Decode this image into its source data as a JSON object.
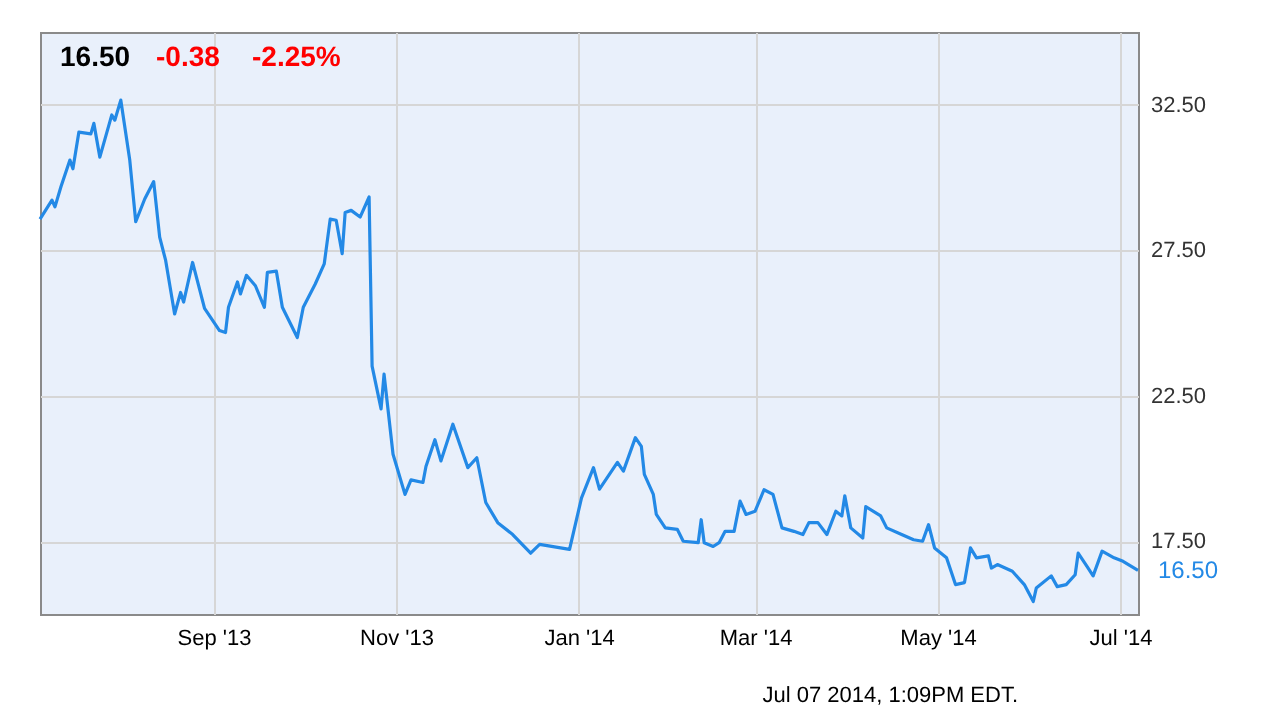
{
  "chart_data": {
    "type": "line",
    "annotations": [
      "16.50",
      "-0.38",
      "-2.25%",
      "Jul 07 2014, 1:09PM EDT."
    ],
    "x": [
      "2013-07-05",
      "2013-07-09",
      "2013-07-10",
      "2013-07-12",
      "2013-07-15",
      "2013-07-16",
      "2013-07-18",
      "2013-07-22",
      "2013-07-23",
      "2013-07-25",
      "2013-07-29",
      "2013-07-30",
      "2013-08-01",
      "2013-08-04",
      "2013-08-06",
      "2013-08-09",
      "2013-08-12",
      "2013-08-14",
      "2013-08-16",
      "2013-08-19",
      "2013-08-21",
      "2013-08-22",
      "2013-08-25",
      "2013-08-29",
      "2013-09-03",
      "2013-09-05",
      "2013-09-06",
      "2013-09-09",
      "2013-09-10",
      "2013-09-12",
      "2013-09-15",
      "2013-09-18",
      "2013-09-19",
      "2013-09-22",
      "2013-09-24",
      "2013-09-29",
      "2013-10-01",
      "2013-10-05",
      "2013-10-08",
      "2013-10-10",
      "2013-10-12",
      "2013-10-14",
      "2013-10-15",
      "2013-10-17",
      "2013-10-20",
      "2013-10-23",
      "2013-10-24",
      "2013-10-27",
      "2013-10-28",
      "2013-10-31",
      "2013-11-04",
      "2013-11-06",
      "2013-11-10",
      "2013-11-11",
      "2013-11-14",
      "2013-11-16",
      "2013-11-20",
      "2013-11-25",
      "2013-11-28",
      "2013-12-01",
      "2013-12-05",
      "2013-12-10",
      "2013-12-16",
      "2013-12-19",
      "2013-12-29",
      "2014-01-02",
      "2014-01-06",
      "2014-01-08",
      "2014-01-14",
      "2014-01-16",
      "2014-01-20",
      "2014-01-22",
      "2014-01-23",
      "2014-01-26",
      "2014-01-27",
      "2014-01-30",
      "2014-02-03",
      "2014-02-05",
      "2014-02-10",
      "2014-02-11",
      "2014-02-12",
      "2014-02-15",
      "2014-02-17",
      "2014-02-19",
      "2014-02-22",
      "2014-02-24",
      "2014-02-26",
      "2014-03-01",
      "2014-03-04",
      "2014-03-07",
      "2014-03-10",
      "2014-03-14",
      "2014-03-17",
      "2014-03-19",
      "2014-03-22",
      "2014-03-25",
      "2014-03-28",
      "2014-03-30",
      "2014-03-31",
      "2014-04-02",
      "2014-04-06",
      "2014-04-07",
      "2014-04-12",
      "2014-04-14",
      "2014-04-19",
      "2014-04-23",
      "2014-04-26",
      "2014-04-28",
      "2014-04-30",
      "2014-05-04",
      "2014-05-07",
      "2014-05-10",
      "2014-05-12",
      "2014-05-14",
      "2014-05-18",
      "2014-05-19",
      "2014-05-21",
      "2014-05-26",
      "2014-05-30",
      "2014-06-02",
      "2014-06-03",
      "2014-06-08",
      "2014-06-10",
      "2014-06-13",
      "2014-06-16",
      "2014-06-17",
      "2014-06-20",
      "2014-06-22",
      "2014-06-25",
      "2014-06-29",
      "2014-07-02",
      "2014-07-07"
    ],
    "series": [
      {
        "color": "#2389e6",
        "values": [
          28.57,
          29.22,
          28.99,
          29.68,
          30.6,
          30.3,
          31.56,
          31.5,
          31.86,
          30.7,
          32.15,
          31.97,
          32.66,
          30.6,
          28.48,
          29.26,
          29.86,
          27.95,
          27.15,
          25.31,
          26.05,
          25.72,
          27.08,
          25.5,
          24.74,
          24.67,
          25.54,
          26.41,
          26.0,
          26.64,
          26.28,
          25.54,
          26.74,
          26.78,
          25.54,
          24.5,
          25.54,
          26.34,
          27.03,
          28.57,
          28.53,
          27.38,
          28.8,
          28.87,
          28.64,
          29.33,
          23.52,
          22.05,
          23.24,
          20.49,
          19.11,
          19.61,
          19.52,
          20.07,
          20.99,
          20.26,
          21.52,
          20.03,
          20.37,
          18.83,
          18.14,
          17.73,
          17.09,
          17.39,
          17.22,
          18.99,
          20.03,
          19.29,
          20.21,
          19.91,
          21.06,
          20.76,
          19.8,
          19.11,
          18.42,
          17.96,
          17.91,
          17.5,
          17.45,
          18.24,
          17.45,
          17.32,
          17.45,
          17.84,
          17.84,
          18.88,
          18.42,
          18.53,
          19.27,
          19.11,
          17.96,
          17.84,
          17.73,
          18.14,
          18.14,
          17.73,
          18.53,
          18.37,
          19.06,
          17.96,
          17.61,
          18.69,
          18.37,
          17.96,
          17.73,
          17.55,
          17.5,
          18.07,
          17.27,
          16.93,
          16.01,
          16.08,
          17.27,
          16.93,
          17.0,
          16.58,
          16.7,
          16.47,
          16.01,
          15.43,
          15.89,
          16.31,
          15.94,
          16.01,
          16.35,
          17.09,
          16.63,
          16.31,
          17.16,
          16.93,
          16.81,
          16.5
        ],
        "value_labels": [
          null,
          null,
          null,
          null,
          null,
          null,
          null,
          null,
          null,
          null,
          null,
          null,
          null,
          null,
          null,
          null,
          null,
          null,
          null,
          null,
          null,
          null,
          null,
          null,
          null,
          null,
          null,
          null,
          null,
          null,
          null,
          null,
          null,
          null,
          null,
          null,
          null,
          null,
          null,
          null,
          null,
          null,
          null,
          null,
          null,
          null,
          null,
          null,
          null,
          null,
          null,
          null,
          null,
          null,
          null,
          null,
          null,
          null,
          null,
          null,
          null,
          null,
          null,
          null,
          null,
          null,
          null,
          null,
          null,
          null,
          null,
          null,
          null,
          null,
          null,
          null,
          null,
          null,
          null,
          null,
          null,
          null,
          null,
          null,
          null,
          null,
          null,
          null,
          null,
          null,
          null,
          null,
          null,
          null,
          null,
          null,
          null,
          null,
          null,
          null,
          null,
          null,
          null,
          null,
          null,
          null,
          null,
          null,
          null,
          null,
          null,
          null,
          null,
          null,
          null,
          null,
          null,
          null,
          null,
          null,
          null,
          null,
          null,
          null,
          null,
          null,
          null,
          null,
          null,
          null,
          null,
          "16.50"
        ]
      }
    ],
    "xlim": [
      "2013-07-05",
      "2014-07-07"
    ],
    "xticks": [
      {
        "value": "2013-09-01",
        "label": "Sep '13"
      },
      {
        "value": "2013-11-01",
        "label": "Nov '13"
      },
      {
        "value": "2014-01-01",
        "label": "Jan '14"
      },
      {
        "value": "2014-03-01",
        "label": "Mar '14"
      },
      {
        "value": "2014-05-01",
        "label": "May '14"
      },
      {
        "value": "2014-07-01",
        "label": "Jul '14"
      }
    ],
    "ylim": [
      15,
      35
    ],
    "yticks": [
      {
        "value": 17.5,
        "label": "17.50"
      },
      {
        "value": 22.5,
        "label": "22.50"
      },
      {
        "value": 27.5,
        "label": "27.50"
      },
      {
        "value": 32.5,
        "label": "32.50"
      }
    ],
    "grid": true,
    "marker": "none",
    "line_style": "solid"
  }
}
